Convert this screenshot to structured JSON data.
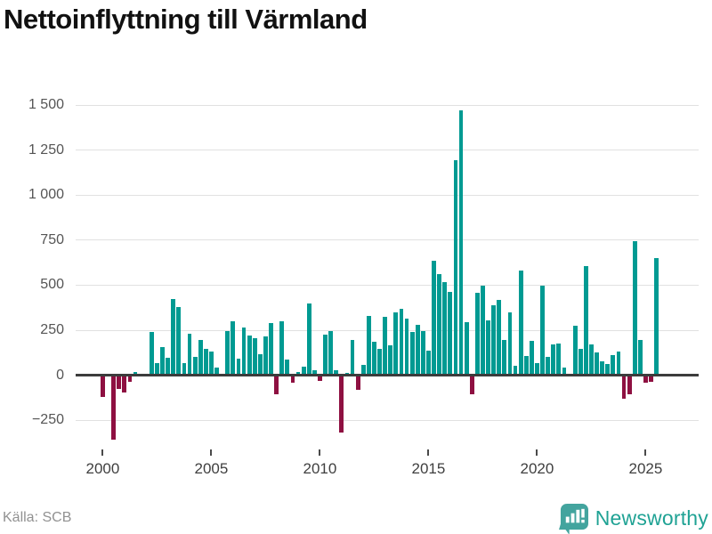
{
  "title": "Nettoinflyttning till Värmland",
  "source": "Källa: SCB",
  "brand": {
    "name": "Newsworthy"
  },
  "colors": {
    "positive_bar": "#009a92",
    "negative_bar": "#8e1041",
    "gridline": "#e1e1e1",
    "zero_line": "#3c3c3c",
    "title": "#111111",
    "y_label": "#555555",
    "x_label": "#3f3f3f",
    "source": "#919191",
    "brand_icon": "#43a49e",
    "brand_text": "#1fa294",
    "background": "#ffffff"
  },
  "chart_data": {
    "type": "bar",
    "title": "Nettoinflyttning till Värmland",
    "frequency": "quarterly",
    "x_start": "2000Q1",
    "x_end": "2025Q3",
    "grid": true,
    "legend": false,
    "ylim": [
      -430,
      1560
    ],
    "y_ticks": [
      1500,
      1250,
      1000,
      750,
      500,
      250,
      0,
      -250
    ],
    "y_tick_labels": [
      "1 500",
      "1 250",
      "1 000",
      "750",
      "500",
      "250",
      "0",
      "−250"
    ],
    "x_tick_years": [
      2000,
      2005,
      2010,
      2015,
      2020,
      2025
    ],
    "x_tick_labels": [
      "2000",
      "2005",
      "2010",
      "2015",
      "2020",
      "2025"
    ],
    "values": [
      -120,
      0,
      -360,
      -75,
      -97,
      -35,
      18,
      0,
      0,
      240,
      67,
      154,
      97,
      425,
      380,
      65,
      230,
      100,
      195,
      145,
      130,
      43,
      7,
      243,
      301,
      91,
      266,
      218,
      205,
      119,
      213,
      288,
      -108,
      301,
      86,
      -42,
      16,
      45,
      398,
      27,
      -34,
      225,
      243,
      30,
      -318,
      12,
      198,
      -83,
      59,
      328,
      186,
      145,
      323,
      166,
      351,
      369,
      316,
      240,
      280,
      245,
      135,
      633,
      562,
      517,
      462,
      1195,
      1470,
      292,
      -107,
      457,
      499,
      305,
      387,
      420,
      198,
      349,
      54,
      582,
      107,
      189,
      66,
      499,
      102,
      170,
      176,
      42,
      0,
      275,
      145,
      608,
      172,
      128,
      75,
      62,
      112,
      133,
      -128,
      -105,
      745,
      195,
      -42,
      -38,
      650
    ]
  }
}
